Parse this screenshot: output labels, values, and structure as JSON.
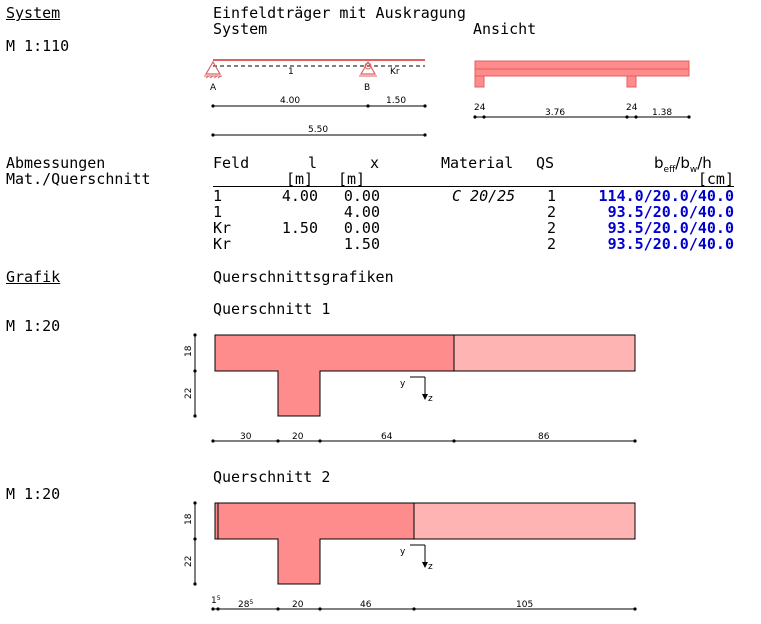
{
  "sections": {
    "system": "System",
    "system_scale": "M 1:110",
    "dims": "Abmessungen",
    "mat": "Mat./Querschnitt",
    "grafik": "Grafik"
  },
  "headings": {
    "title": "Einfeldträger mit Auskragung",
    "system": "System",
    "ansicht": "Ansicht",
    "qs_graphics": "Querschnittsgrafiken"
  },
  "system_drawing": {
    "labels": {
      "span": "1",
      "cant": "Kr",
      "A": "A",
      "B": "B"
    },
    "dims1": [
      "4.00",
      "1.50"
    ],
    "dims2": [
      "5.50"
    ]
  },
  "ansicht_drawing": {
    "dims": [
      "24",
      "3.76",
      "24",
      "1.38"
    ]
  },
  "table": {
    "headers": {
      "feld": "Feld",
      "l": "l",
      "x": "x",
      "material": "Material",
      "qs": "QS",
      "beff_b": "b",
      "beff_sub": "eff",
      "bw_b": "/b",
      "bw_sub": "w",
      "h": "/h",
      "l_unit": "[m]",
      "x_unit": "[m]",
      "b_unit": "[cm]"
    },
    "rows": [
      {
        "feld": "1",
        "l": "4.00",
        "x": "0.00",
        "material": "C 20/25",
        "qs": "1",
        "dims": "114.0/20.0/40.0"
      },
      {
        "feld": "1",
        "l": "",
        "x": "4.00",
        "material": "",
        "qs": "2",
        "dims": "93.5/20.0/40.0"
      },
      {
        "feld": "Kr",
        "l": "1.50",
        "x": "0.00",
        "material": "",
        "qs": "2",
        "dims": "93.5/20.0/40.0"
      },
      {
        "feld": "Kr",
        "l": "",
        "x": "1.50",
        "material": "",
        "qs": "2",
        "dims": "93.5/20.0/40.0"
      }
    ]
  },
  "cross_sections": [
    {
      "title": "Querschnitt 1",
      "scale": "M 1:20",
      "vdims": [
        "18",
        "22"
      ],
      "hdims": [
        "30",
        "20",
        "64",
        "86"
      ],
      "axes": {
        "y": "y",
        "z": "z"
      }
    },
    {
      "title": "Querschnitt 2",
      "scale": "M 1:20",
      "vdims": [
        "18",
        "22"
      ],
      "hdims": [
        {
          "main": "1",
          "sup": "5"
        },
        {
          "main": "28",
          "sup": "5"
        },
        {
          "main": "20",
          "sup": ""
        },
        {
          "main": "46",
          "sup": ""
        },
        {
          "main": "105",
          "sup": ""
        }
      ],
      "axes": {
        "y": "y",
        "z": "z"
      }
    }
  ],
  "colors": {
    "section_fill": "#ff8c8c",
    "section_light": "#ffb4b4",
    "outline": "#000000",
    "value_blue": "#0000cc"
  }
}
